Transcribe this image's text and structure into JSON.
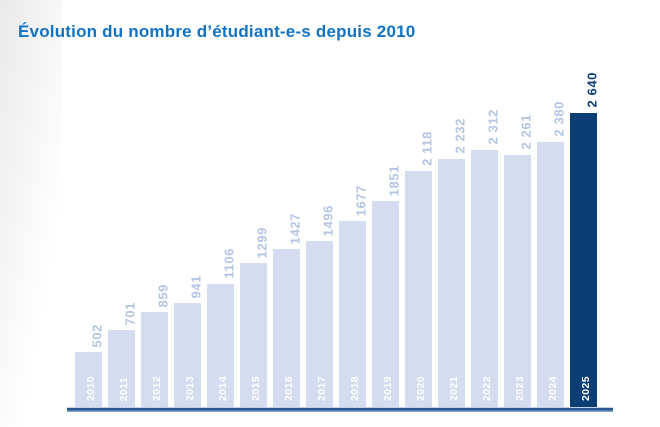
{
  "chart_data": {
    "type": "bar",
    "title": "Évolution du nombre d’étudiant-e-s depuis 2010",
    "categories": [
      "2010",
      "2011",
      "2012",
      "2013",
      "2014",
      "2015",
      "2016",
      "2017",
      "2018",
      "2019",
      "2020",
      "2021",
      "2022",
      "2023",
      "2024",
      "2025"
    ],
    "values": [
      502,
      701,
      859,
      941,
      1106,
      1299,
      1427,
      1496,
      1677,
      1851,
      2118,
      2232,
      2312,
      2261,
      2380,
      2640
    ],
    "value_labels": [
      "502",
      "701",
      "859",
      "941",
      "1106",
      "1299",
      "1427",
      "1496",
      "1677",
      "1851",
      "2 118",
      "2 232",
      "2 312",
      "2 261",
      "2 380",
      "2 640"
    ],
    "highlight_category": "2025",
    "xlabel": "",
    "ylabel": "",
    "ylim": [
      0,
      2640
    ],
    "grid": false,
    "legend": "none",
    "value_label_rotation": 90,
    "year_label_rotation": 90,
    "colors": {
      "title": "#1273c2",
      "bar": "#d3ddef",
      "bar_value_label": "#b4c5e4",
      "highlight_bar": "#0c3e76",
      "highlight_value_label": "#0c3e76",
      "year_label": "#ffffff",
      "baseline_dark": "#2a5890",
      "baseline_light": "#84a5cf",
      "baseline_edge": "#c3d1e8"
    }
  }
}
